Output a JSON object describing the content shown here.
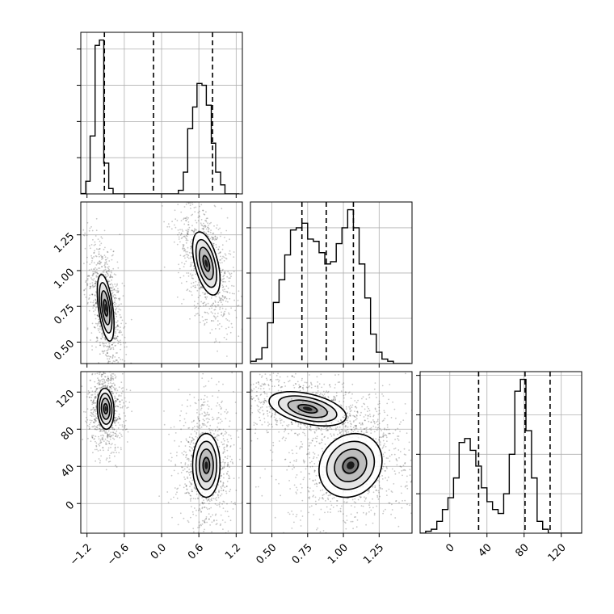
{
  "chart_data": {
    "type": "corner",
    "title": "",
    "colors": {
      "line": "#000000",
      "grid": "#b0b0b0",
      "scatter": "#000000",
      "fill": "#000000"
    },
    "grid": true,
    "parameters": [
      {
        "name": "",
        "range": [
          -1.3,
          1.3
        ],
        "ticks": [
          -1.2,
          -0.6,
          0.0,
          0.6,
          1.2
        ],
        "tick_labels": [
          "−1.2",
          "−0.6",
          "0.0",
          "0.6",
          "1.2"
        ]
      },
      {
        "name": "",
        "range": [
          0.35,
          1.48
        ],
        "ticks": [
          0.5,
          0.75,
          1.0,
          1.25
        ],
        "tick_labels": [
          "0.50",
          "0.75",
          "1.00",
          "1.25"
        ]
      },
      {
        "name": "",
        "range": [
          -32,
          142
        ],
        "ticks": [
          0,
          40,
          80,
          120
        ],
        "tick_labels": [
          "0",
          "40",
          "80",
          "120"
        ]
      }
    ],
    "histograms": [
      {
        "parameter": 0,
        "edges": [
          -1.3,
          -1.22,
          -1.15,
          -1.07,
          -1.0,
          -0.93,
          -0.85,
          -0.78,
          -0.7,
          -0.63,
          -0.55,
          -0.48,
          -0.4,
          -0.33,
          -0.25,
          -0.18,
          -0.1,
          -0.03,
          0.05,
          0.12,
          0.2,
          0.27,
          0.35,
          0.42,
          0.5,
          0.57,
          0.65,
          0.72,
          0.8,
          0.87,
          0.95,
          1.02,
          1.1,
          1.17,
          1.25
        ],
        "counts": [
          0.2,
          7,
          32,
          82,
          85,
          17,
          3,
          0,
          0,
          0,
          0,
          0,
          0,
          0,
          0,
          0,
          0,
          0,
          0,
          0,
          0,
          2,
          12,
          36,
          48,
          61,
          60,
          49,
          28,
          12,
          5,
          0,
          0,
          0
        ],
        "quantiles": [
          -0.92,
          -0.13,
          0.82
        ]
      },
      {
        "parameter": 1,
        "edges": [
          0.35,
          0.39,
          0.43,
          0.47,
          0.51,
          0.55,
          0.59,
          0.63,
          0.67,
          0.71,
          0.75,
          0.79,
          0.83,
          0.87,
          0.91,
          0.95,
          0.99,
          1.03,
          1.07,
          1.11,
          1.15,
          1.19,
          1.23,
          1.27,
          1.31,
          1.35,
          1.39,
          1.43,
          1.47
        ],
        "counts": [
          1,
          2,
          7,
          18,
          27,
          37,
          48,
          59,
          60,
          62,
          55,
          54,
          49,
          44,
          45,
          53,
          60,
          68,
          60,
          44,
          29,
          13,
          5,
          2,
          1,
          0,
          0,
          0
        ],
        "quantiles": [
          0.71,
          0.88,
          1.07
        ]
      },
      {
        "parameter": 2,
        "edges": [
          -32,
          -26,
          -20,
          -14,
          -8,
          -2,
          4,
          10,
          16,
          22,
          28,
          34,
          40,
          46,
          52,
          58,
          64,
          70,
          76,
          82,
          88,
          94,
          100,
          106,
          112,
          118,
          124,
          130,
          136,
          142
        ],
        "counts": [
          0,
          1,
          2,
          6,
          12,
          18,
          28,
          46,
          48,
          42,
          34,
          23,
          16,
          12,
          10,
          20,
          40,
          72,
          78,
          52,
          28,
          6,
          2,
          0,
          0,
          0,
          0,
          0,
          0
        ],
        "quantiles": [
          31,
          81,
          108
        ]
      }
    ],
    "pairs": [
      {
        "x_parameter": 0,
        "y_parameter": 1,
        "modes": [
          {
            "center": [
              -0.9,
              0.74
            ],
            "sd": [
              0.055,
              0.095
            ],
            "rho": -0.5
          },
          {
            "center": [
              0.72,
              1.05
            ],
            "sd": [
              0.09,
              0.09
            ],
            "rho": -0.5
          }
        ]
      },
      {
        "x_parameter": 0,
        "y_parameter": 2,
        "modes": [
          {
            "center": [
              -0.9,
              102
            ],
            "sd": [
              0.055,
              9
            ],
            "rho": -0.1
          },
          {
            "center": [
              0.72,
              41
            ],
            "sd": [
              0.09,
              14
            ],
            "rho": 0.0
          }
        ]
      },
      {
        "x_parameter": 1,
        "y_parameter": 2,
        "modes": [
          {
            "center": [
              0.75,
              102
            ],
            "sd": [
              0.11,
              7.5
            ],
            "rho": -0.45
          },
          {
            "center": [
              1.05,
              41
            ],
            "sd": [
              0.09,
              14
            ],
            "rho": 0.15
          }
        ]
      }
    ]
  }
}
